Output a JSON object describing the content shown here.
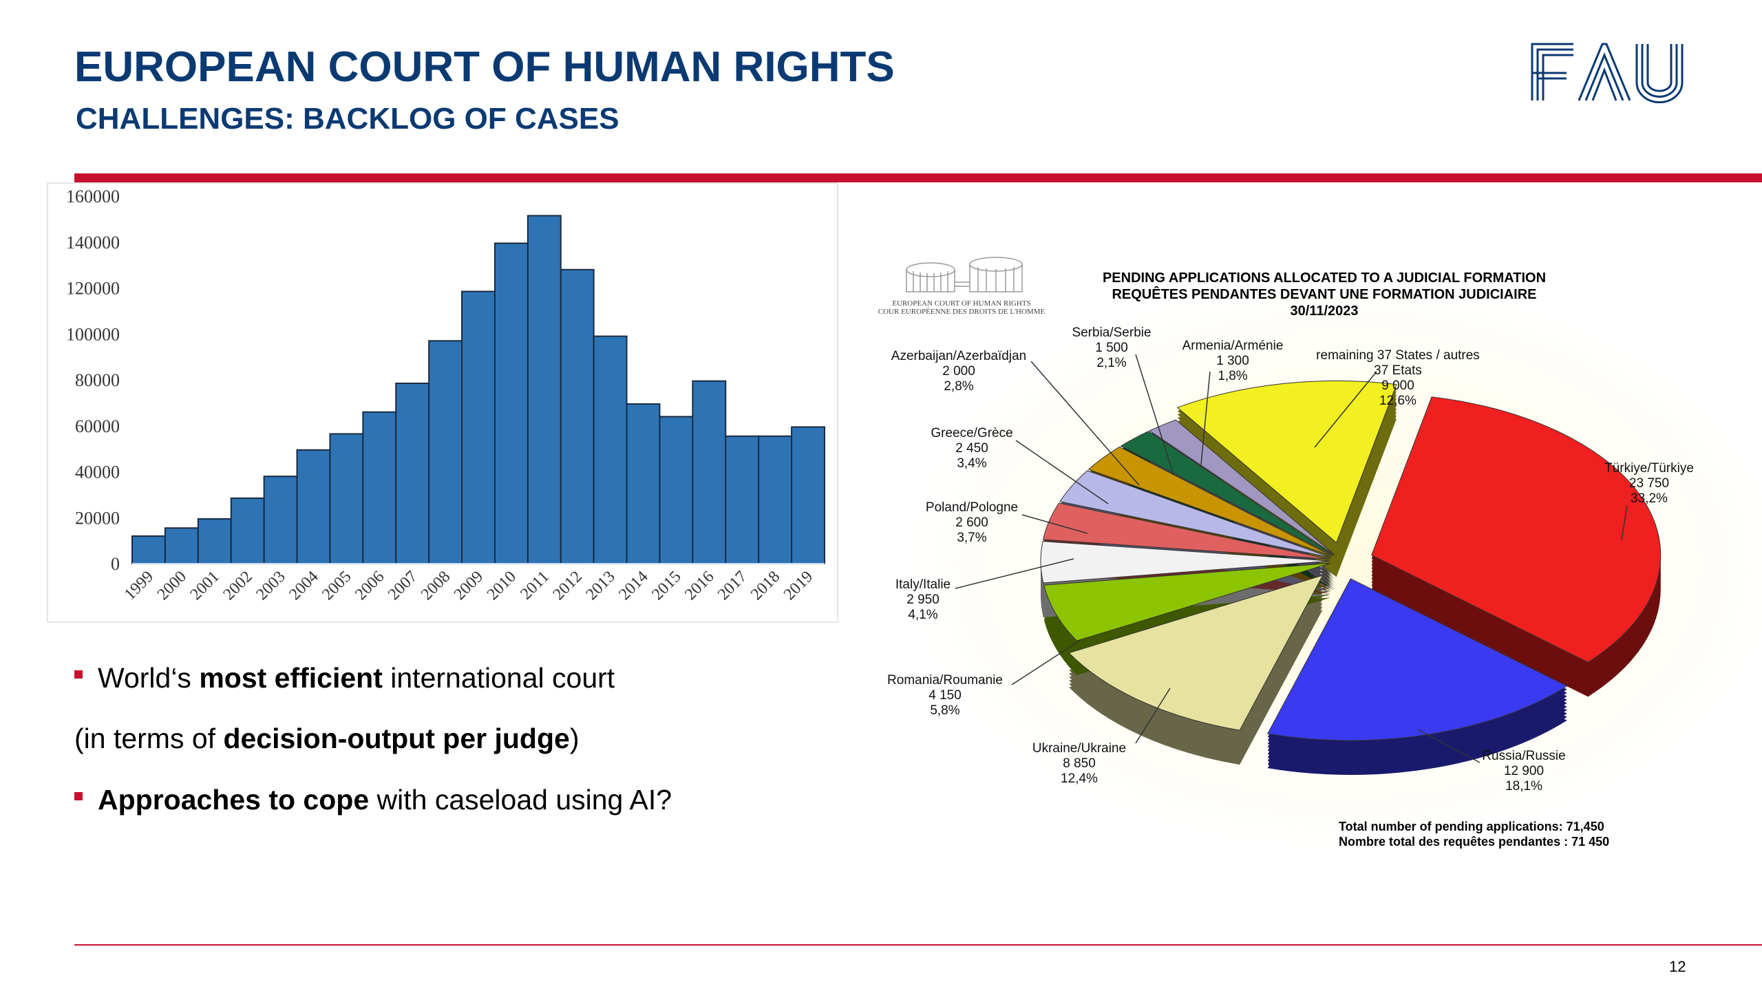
{
  "header": {
    "title": "EUROPEAN COURT OF HUMAN RIGHTS",
    "subtitle": "CHALLENGES: BACKLOG OF CASES",
    "logo_text": "FAU"
  },
  "bullets": [
    {
      "pre": "World‘s ",
      "bold": "most efficient",
      "post": " international court",
      "marker": true
    },
    {
      "pre": "(in terms of ",
      "bold": "decision-output per judge",
      "post": ")",
      "marker": false
    },
    {
      "pre": "",
      "bold": "Approaches to cope",
      "post": " with caseload using AI?",
      "marker": true
    }
  ],
  "footer": {
    "page_number": "12"
  },
  "colors": {
    "title": "#0b3a73",
    "accent": "#c8102e",
    "bar": "#2e74b5"
  },
  "chart_data": [
    {
      "type": "bar",
      "title": "",
      "categories": [
        "1999",
        "2000",
        "2001",
        "2002",
        "2003",
        "2004",
        "2005",
        "2006",
        "2007",
        "2008",
        "2009",
        "2010",
        "2011",
        "2012",
        "2013",
        "2014",
        "2015",
        "2016",
        "2017",
        "2018",
        "2019"
      ],
      "values": [
        12000,
        15500,
        19500,
        28500,
        38000,
        49500,
        56500,
        66000,
        78500,
        97000,
        118500,
        139500,
        151500,
        128000,
        99000,
        69500,
        64000,
        79500,
        55500,
        55500,
        59500
      ],
      "yticks": [
        "0",
        "20000",
        "40000",
        "60000",
        "80000",
        "100000",
        "120000",
        "140000",
        "160000"
      ],
      "ylim": [
        0,
        160000
      ],
      "xlabel": "",
      "ylabel": ""
    },
    {
      "type": "pie",
      "title": [
        "PENDING APPLICATIONS ALLOCATED TO A JUDICIAL FORMATION",
        "REQUÊTES PENDANTES DEVANT UNE FORMATION JUDICIAIRE",
        "30/11/2023"
      ],
      "logo_text": [
        "EUROPEAN COURT OF HUMAN RIGHTS",
        "COUR EUROPÉENNE DES DROITS DE L'HOMME"
      ],
      "slices": [
        {
          "name": "Türkiye/Türkiye",
          "value": "23 750",
          "pct": "33,2%",
          "percent": 33.2,
          "color": "#f02020"
        },
        {
          "name": "Russia/Russie",
          "value": "12 900",
          "pct": "18,1%",
          "percent": 18.1,
          "color": "#3a3af0"
        },
        {
          "name": "Ukraine/Ukraine",
          "value": "8 850",
          "pct": "12,4%",
          "percent": 12.4,
          "color": "#e6e3a0"
        },
        {
          "name": "Romania/Roumanie",
          "value": "4 150",
          "pct": "5,8%",
          "percent": 5.8,
          "color": "#8cc400"
        },
        {
          "name": "Italy/Italie",
          "value": "2 950",
          "pct": "4,1%",
          "percent": 4.1,
          "color": "#f2f2f2"
        },
        {
          "name": "Poland/Pologne",
          "value": "2 600",
          "pct": "3,7%",
          "percent": 3.7,
          "color": "#e06060"
        },
        {
          "name": "Greece/Grèce",
          "value": "2 450",
          "pct": "3,4%",
          "percent": 3.4,
          "color": "#b8b8e8"
        },
        {
          "name": "Azerbaijan/Azerbaïdjan",
          "value": "2 000",
          "pct": "2,8%",
          "percent": 2.8,
          "color": "#c89400"
        },
        {
          "name": "Serbia/Serbie",
          "value": "1 500",
          "pct": "2,1%",
          "percent": 2.1,
          "color": "#1a6a40"
        },
        {
          "name": "Armenia/Arménie",
          "value": "1 300",
          "pct": "1,8%",
          "percent": 1.8,
          "color": "#a098c0"
        },
        {
          "name": "remaining 37 States / autres",
          "name2": "37 Etats",
          "value": "9 000",
          "pct": "12,6%",
          "percent": 12.6,
          "color": "#f2f020"
        }
      ],
      "total_en": "Total number of pending applications:  71,450",
      "total_fr": "Nombre total des requêtes pendantes : 71 450"
    }
  ]
}
